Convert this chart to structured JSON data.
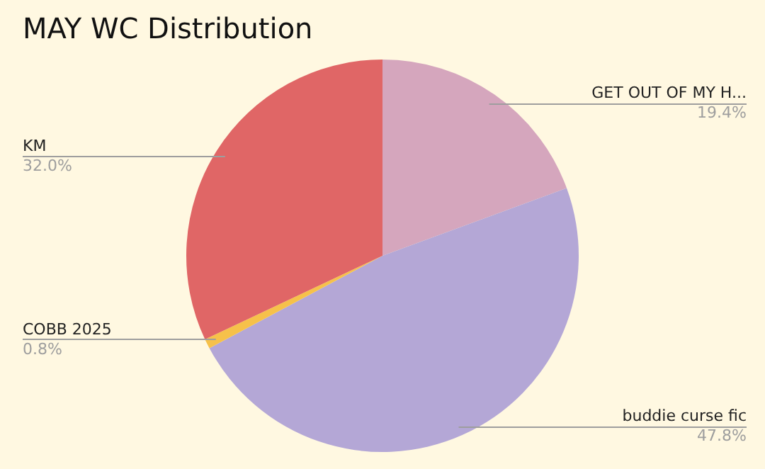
{
  "chart_data": {
    "type": "pie",
    "title": "MAY WC Distribution",
    "categories": [
      "GET OUT OF MY H...",
      "buddie curse fic",
      "COBB 2025",
      "KM"
    ],
    "values": [
      19.4,
      47.8,
      0.8,
      32.0
    ],
    "colors": [
      "#d5a6bd",
      "#b4a7d6",
      "#f6c14a",
      "#e06666"
    ],
    "value_labels": [
      "19.4%",
      "47.8%",
      "0.8%",
      "32.0%"
    ],
    "legend": false
  }
}
